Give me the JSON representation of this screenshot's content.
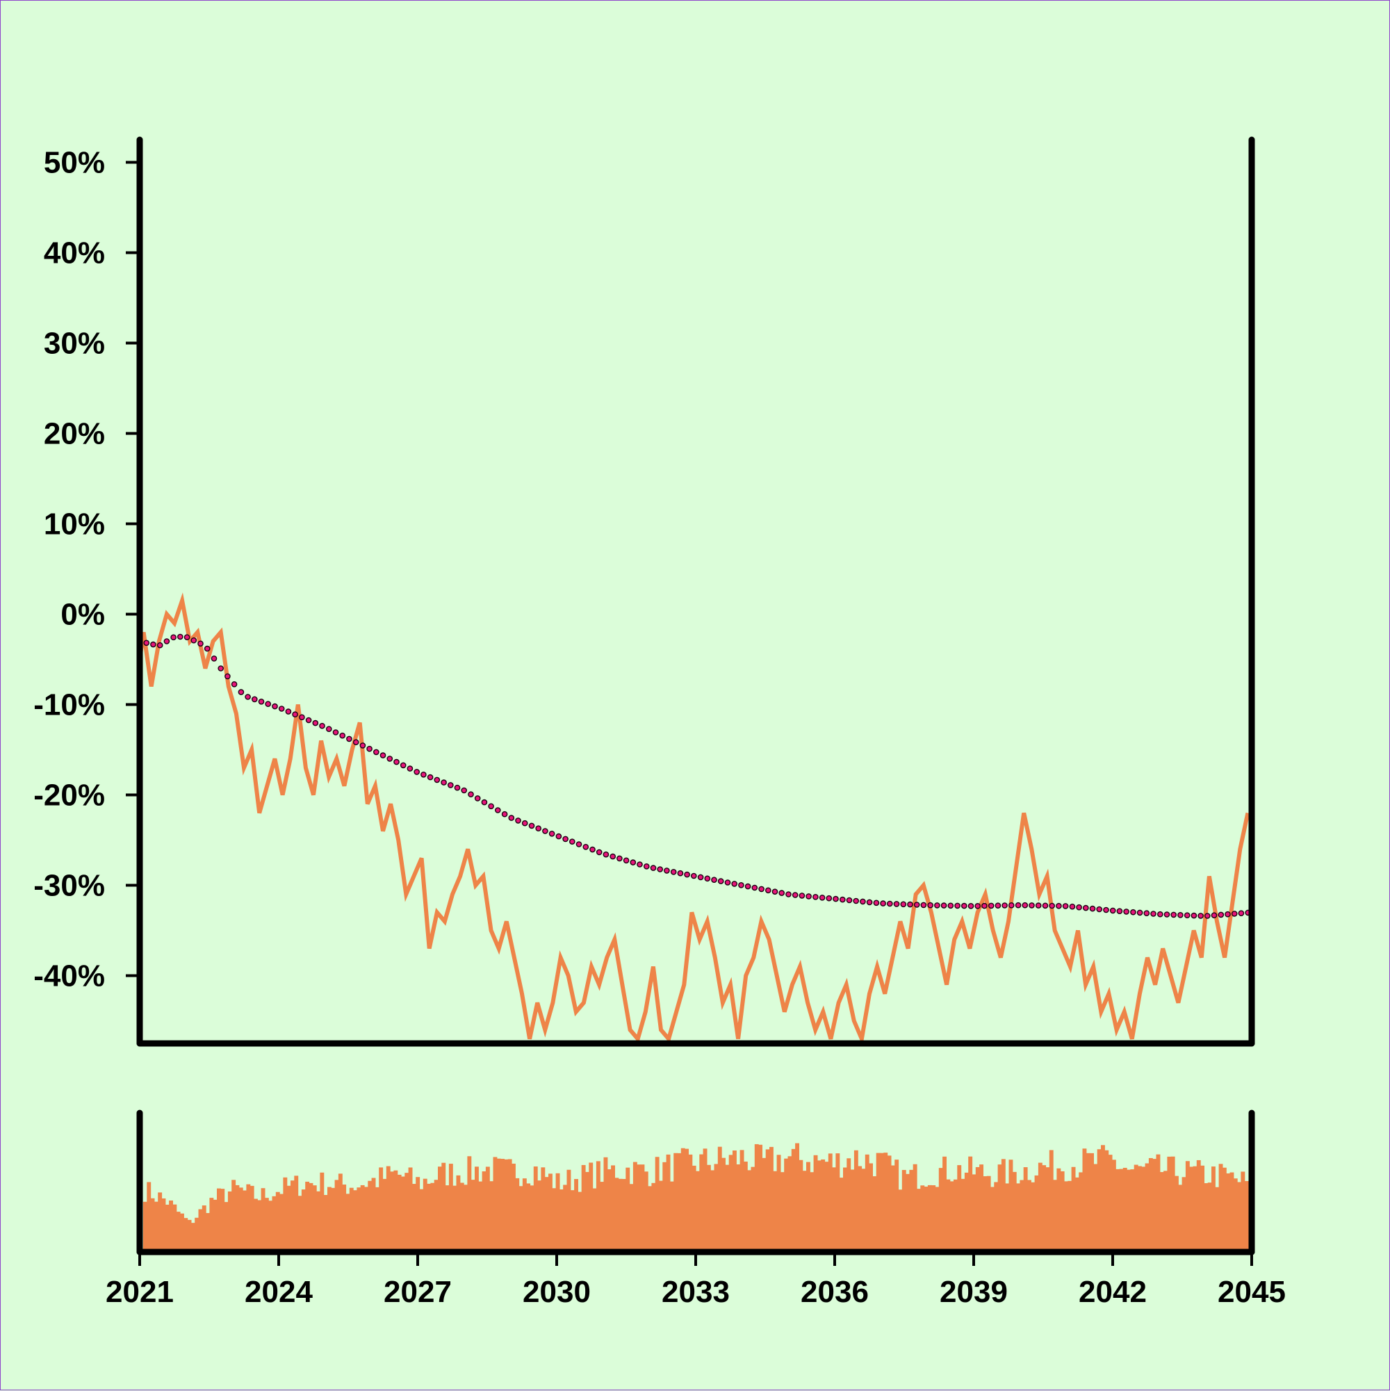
{
  "colors": {
    "background": "#dbfdd9",
    "border": "#8e44c9",
    "price_line": "#ee8448",
    "volume_bars": "#ee8448",
    "trend_dots": "#e8157a",
    "trend_dot_outline": "#1a0010",
    "axes": "#000000"
  },
  "chart_data": {
    "type": "line",
    "title": "",
    "xlabel": "",
    "ylabel": "",
    "grid": false,
    "legend": "none",
    "x_range": [
      "2021-01-01",
      "2045-01-01"
    ],
    "x_ticks": [
      "2021",
      "2024",
      "2027",
      "2030",
      "2033",
      "2036",
      "2039",
      "2042",
      "2045"
    ],
    "ylim": [
      -47.5,
      52.5
    ],
    "y_ticks": [
      "50%",
      "40%",
      "30%",
      "20%",
      "10%",
      "0%",
      "-10%",
      "-20%",
      "-30%",
      "-40%"
    ],
    "y_tick_values": [
      50,
      40,
      30,
      20,
      10,
      0,
      -10,
      -20,
      -30,
      -40
    ],
    "series": [
      {
        "style": "solid-line",
        "points": [
          [
            "2021-01",
            -5
          ],
          [
            "2021-02",
            -2
          ],
          [
            "2021-04",
            -8
          ],
          [
            "2021-06",
            -3
          ],
          [
            "2021-08",
            0
          ],
          [
            "2021-10",
            -1
          ],
          [
            "2021-12",
            1.5
          ],
          [
            "2022-02",
            -3
          ],
          [
            "2022-04",
            -2
          ],
          [
            "2022-06",
            -6
          ],
          [
            "2022-08",
            -3
          ],
          [
            "2022-10",
            -2
          ],
          [
            "2022-12",
            -8
          ],
          [
            "2023-02",
            -11
          ],
          [
            "2023-04",
            -17
          ],
          [
            "2023-06",
            -15
          ],
          [
            "2023-08",
            -22
          ],
          [
            "2023-10",
            -19
          ],
          [
            "2023-12",
            -16
          ],
          [
            "2024-02",
            -20
          ],
          [
            "2024-04",
            -16
          ],
          [
            "2024-06",
            -10
          ],
          [
            "2024-08",
            -17
          ],
          [
            "2024-10",
            -20
          ],
          [
            "2024-12",
            -14
          ],
          [
            "2025-02",
            -18
          ],
          [
            "2025-04",
            -16
          ],
          [
            "2025-06",
            -19
          ],
          [
            "2025-08",
            -15
          ],
          [
            "2025-10",
            -12
          ],
          [
            "2025-12",
            -21
          ],
          [
            "2026-02",
            -19
          ],
          [
            "2026-04",
            -24
          ],
          [
            "2026-06",
            -21
          ],
          [
            "2026-08",
            -25
          ],
          [
            "2026-10",
            -31
          ],
          [
            "2026-12",
            -29
          ],
          [
            "2027-02",
            -27
          ],
          [
            "2027-04",
            -37
          ],
          [
            "2027-06",
            -33
          ],
          [
            "2027-08",
            -34
          ],
          [
            "2027-10",
            -31
          ],
          [
            "2027-12",
            -29
          ],
          [
            "2028-02",
            -26
          ],
          [
            "2028-04",
            -30
          ],
          [
            "2028-06",
            -29
          ],
          [
            "2028-08",
            -35
          ],
          [
            "2028-10",
            -37
          ],
          [
            "2028-12",
            -34
          ],
          [
            "2029-02",
            -38
          ],
          [
            "2029-04",
            -42
          ],
          [
            "2029-06",
            -47
          ],
          [
            "2029-08",
            -43
          ],
          [
            "2029-10",
            -46
          ],
          [
            "2029-12",
            -43
          ],
          [
            "2030-02",
            -38
          ],
          [
            "2030-04",
            -40
          ],
          [
            "2030-06",
            -44
          ],
          [
            "2030-08",
            -43
          ],
          [
            "2030-10",
            -39
          ],
          [
            "2030-12",
            -41
          ],
          [
            "2031-02",
            -38
          ],
          [
            "2031-04",
            -36
          ],
          [
            "2031-06",
            -41
          ],
          [
            "2031-08",
            -46
          ],
          [
            "2031-10",
            -47
          ],
          [
            "2031-12",
            -44
          ],
          [
            "2032-02",
            -39
          ],
          [
            "2032-04",
            -46
          ],
          [
            "2032-06",
            -47
          ],
          [
            "2032-08",
            -44
          ],
          [
            "2032-10",
            -41
          ],
          [
            "2032-12",
            -33
          ],
          [
            "2033-02",
            -36
          ],
          [
            "2033-04",
            -34
          ],
          [
            "2033-06",
            -38
          ],
          [
            "2033-08",
            -43
          ],
          [
            "2033-10",
            -41
          ],
          [
            "2033-12",
            -47
          ],
          [
            "2034-02",
            -40
          ],
          [
            "2034-04",
            -38
          ],
          [
            "2034-06",
            -34
          ],
          [
            "2034-08",
            -36
          ],
          [
            "2034-10",
            -40
          ],
          [
            "2034-12",
            -44
          ],
          [
            "2035-02",
            -41
          ],
          [
            "2035-04",
            -39
          ],
          [
            "2035-06",
            -43
          ],
          [
            "2035-08",
            -46
          ],
          [
            "2035-10",
            -44
          ],
          [
            "2035-12",
            -47
          ],
          [
            "2036-02",
            -43
          ],
          [
            "2036-04",
            -41
          ],
          [
            "2036-06",
            -45
          ],
          [
            "2036-08",
            -47
          ],
          [
            "2036-10",
            -42
          ],
          [
            "2036-12",
            -39
          ],
          [
            "2037-02",
            -42
          ],
          [
            "2037-04",
            -38
          ],
          [
            "2037-06",
            -34
          ],
          [
            "2037-08",
            -37
          ],
          [
            "2037-10",
            -31
          ],
          [
            "2037-12",
            -30
          ],
          [
            "2038-02",
            -33
          ],
          [
            "2038-04",
            -37
          ],
          [
            "2038-06",
            -41
          ],
          [
            "2038-08",
            -36
          ],
          [
            "2038-10",
            -34
          ],
          [
            "2038-12",
            -37
          ],
          [
            "2039-02",
            -33
          ],
          [
            "2039-04",
            -31
          ],
          [
            "2039-06",
            -35
          ],
          [
            "2039-08",
            -38
          ],
          [
            "2039-10",
            -34
          ],
          [
            "2039-12",
            -28
          ],
          [
            "2040-02",
            -22
          ],
          [
            "2040-04",
            -26
          ],
          [
            "2040-06",
            -31
          ],
          [
            "2040-08",
            -29
          ],
          [
            "2040-10",
            -35
          ],
          [
            "2040-12",
            -37
          ],
          [
            "2041-02",
            -39
          ],
          [
            "2041-04",
            -35
          ],
          [
            "2041-06",
            -41
          ],
          [
            "2041-08",
            -39
          ],
          [
            "2041-10",
            -44
          ],
          [
            "2041-12",
            -42
          ],
          [
            "2042-02",
            -46
          ],
          [
            "2042-04",
            -44
          ],
          [
            "2042-06",
            -47
          ],
          [
            "2042-08",
            -42
          ],
          [
            "2042-10",
            -38
          ],
          [
            "2042-12",
            -41
          ],
          [
            "2043-02",
            -37
          ],
          [
            "2043-04",
            -40
          ],
          [
            "2043-06",
            -43
          ],
          [
            "2043-08",
            -39
          ],
          [
            "2043-10",
            -35
          ],
          [
            "2043-12",
            -38
          ],
          [
            "2044-02",
            -29
          ],
          [
            "2044-04",
            -34
          ],
          [
            "2044-06",
            -38
          ],
          [
            "2044-08",
            -32
          ],
          [
            "2044-10",
            -26
          ],
          [
            "2044-12",
            -22
          ]
        ]
      },
      {
        "style": "dotted-trend",
        "points": [
          [
            "2021-01",
            -3
          ],
          [
            "2021-06",
            -3.5
          ],
          [
            "2021-10",
            -2.5
          ],
          [
            "2022-01",
            -2.5
          ],
          [
            "2022-06",
            -3.5
          ],
          [
            "2022-10",
            -6
          ],
          [
            "2023-04",
            -9
          ],
          [
            "2024-02",
            -10.5
          ],
          [
            "2025-01",
            -12.5
          ],
          [
            "2026-01",
            -15
          ],
          [
            "2027-01",
            -17.5
          ],
          [
            "2028-01",
            -19.5
          ],
          [
            "2029-01",
            -22.5
          ],
          [
            "2030-01",
            -24.5
          ],
          [
            "2031-01",
            -26.5
          ],
          [
            "2032-01",
            -28
          ],
          [
            "2033-01",
            -29
          ],
          [
            "2034-01",
            -30
          ],
          [
            "2035-01",
            -31
          ],
          [
            "2036-01",
            -31.5
          ],
          [
            "2037-01",
            -32
          ],
          [
            "2038-01",
            -32.2
          ],
          [
            "2039-01",
            -32.3
          ],
          [
            "2040-01",
            -32.2
          ],
          [
            "2041-01",
            -32.3
          ],
          [
            "2042-01",
            -32.8
          ],
          [
            "2043-01",
            -33.2
          ],
          [
            "2044-01",
            -33.4
          ],
          [
            "2045-01",
            -33
          ]
        ]
      }
    ],
    "volume": {
      "type": "bar",
      "y_axis_labels": "none",
      "relative_max": 1.0,
      "envelope": [
        [
          "2021-01",
          0.55
        ],
        [
          "2021-07",
          0.45
        ],
        [
          "2022-01",
          0.25
        ],
        [
          "2022-07",
          0.45
        ],
        [
          "2023-01",
          0.55
        ],
        [
          "2023-07",
          0.48
        ],
        [
          "2024-01",
          0.55
        ],
        [
          "2024-07",
          0.6
        ],
        [
          "2025-01",
          0.6
        ],
        [
          "2025-07",
          0.58
        ],
        [
          "2026-01",
          0.62
        ],
        [
          "2026-07",
          0.68
        ],
        [
          "2027-01",
          0.6
        ],
        [
          "2027-07",
          0.68
        ],
        [
          "2028-01",
          0.7
        ],
        [
          "2028-07",
          0.72
        ],
        [
          "2029-01",
          0.7
        ],
        [
          "2029-07",
          0.72
        ],
        [
          "2030-01",
          0.6
        ],
        [
          "2030-07",
          0.65
        ],
        [
          "2031-01",
          0.7
        ],
        [
          "2031-07",
          0.72
        ],
        [
          "2032-01",
          0.7
        ],
        [
          "2032-07",
          0.75
        ],
        [
          "2033-01",
          0.78
        ],
        [
          "2033-07",
          0.8
        ],
        [
          "2034-01",
          0.82
        ],
        [
          "2034-07",
          0.78
        ],
        [
          "2035-01",
          0.82
        ],
        [
          "2035-07",
          0.8
        ],
        [
          "2036-01",
          0.78
        ],
        [
          "2036-07",
          0.82
        ],
        [
          "2037-01",
          0.78
        ],
        [
          "2037-07",
          0.65
        ],
        [
          "2038-01",
          0.68
        ],
        [
          "2038-07",
          0.72
        ],
        [
          "2039-01",
          0.7
        ],
        [
          "2039-07",
          0.68
        ],
        [
          "2040-01",
          0.7
        ],
        [
          "2040-07",
          0.74
        ],
        [
          "2041-01",
          0.76
        ],
        [
          "2041-07",
          0.78
        ],
        [
          "2042-01",
          0.8
        ],
        [
          "2042-07",
          0.7
        ],
        [
          "2043-01",
          0.72
        ],
        [
          "2043-07",
          0.7
        ],
        [
          "2044-01",
          0.68
        ],
        [
          "2044-07",
          0.66
        ],
        [
          "2045-01",
          0.6
        ]
      ]
    }
  }
}
